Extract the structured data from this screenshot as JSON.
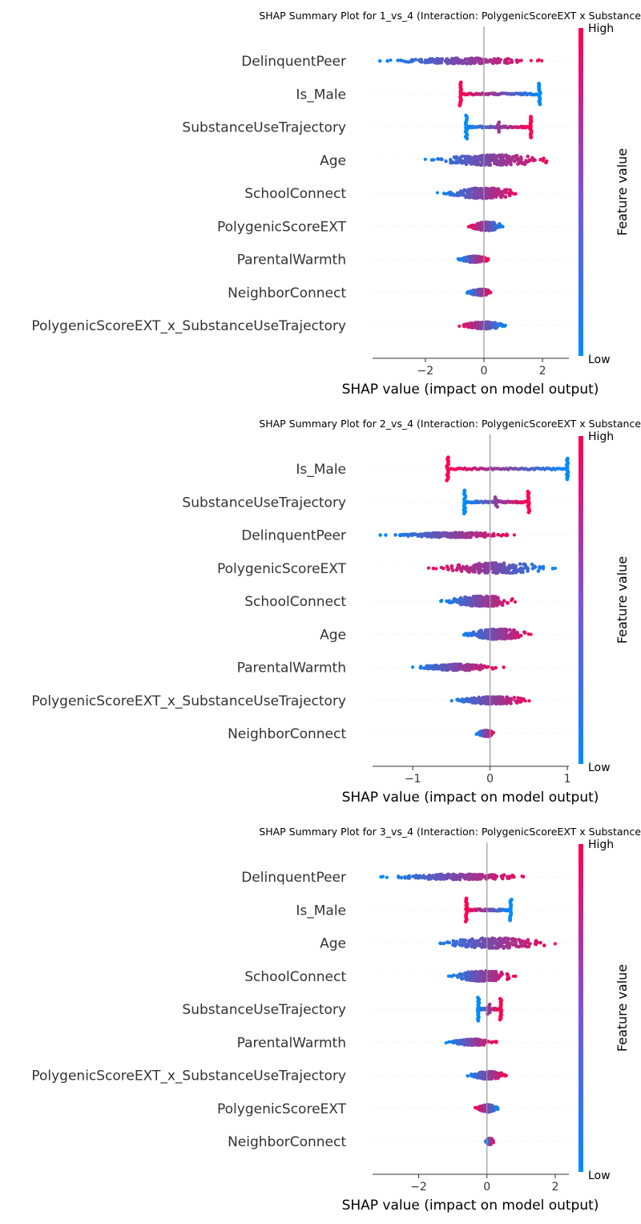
{
  "chart_data": [
    {
      "type": "scatter",
      "title": "SHAP Summary Plot for 1_vs_4 (Interaction: PolygenicScoreEXT x Substance",
      "xlabel": "SHAP value (impact on model output)",
      "xlim": [
        -3.8,
        2.9
      ],
      "xticks": [
        -2,
        0,
        2
      ],
      "xtick_labels": [
        "−2",
        "0",
        "2"
      ],
      "colorbar": {
        "label": "Feature value",
        "high": "High",
        "low": "Low"
      },
      "features": [
        {
          "name": "DelinquentPeer",
          "min": -3.6,
          "max": 2.1,
          "spread": 0.45,
          "dir": 1,
          "outliers": [
            -3.55
          ]
        },
        {
          "name": "Is_Male",
          "min": -0.8,
          "max": 1.9,
          "spread": 0.42,
          "dir": -1,
          "binary": [
            -0.8,
            1.9
          ]
        },
        {
          "name": "SubstanceUseTrajectory",
          "min": -0.6,
          "max": 1.6,
          "spread": 0.35,
          "dir": 1,
          "binary": [
            -0.6,
            1.6
          ],
          "mid": 0.5
        },
        {
          "name": "Age",
          "min": -2.2,
          "max": 2.6,
          "spread": 0.85,
          "dir": 1
        },
        {
          "name": "SchoolConnect",
          "min": -1.6,
          "max": 1.3,
          "spread": 0.85,
          "dir": 1
        },
        {
          "name": "PolygenicScoreEXT",
          "min": -0.6,
          "max": 0.7,
          "spread": 0.7,
          "dir": -1
        },
        {
          "name": "ParentalWarmth",
          "min": -0.9,
          "max": 0.2,
          "spread": 0.5,
          "dir": 1
        },
        {
          "name": "NeighborConnect",
          "min": -0.6,
          "max": 0.3,
          "spread": 0.5,
          "dir": 1
        },
        {
          "name": "PolygenicScoreEXT_x_SubstanceUseTrajectory",
          "min": -0.9,
          "max": 0.8,
          "spread": 0.55,
          "dir": -1
        }
      ]
    },
    {
      "type": "scatter",
      "title": "SHAP Summary Plot for 2_vs_4 (Interaction: PolygenicScoreEXT x Substance",
      "xlabel": "SHAP value (impact on model output)",
      "xlim": [
        -1.52,
        1.02
      ],
      "xticks": [
        -1,
        0,
        1
      ],
      "xtick_labels": [
        "−1",
        "0",
        "1"
      ],
      "colorbar": {
        "label": "Feature value",
        "high": "High",
        "low": "Low"
      },
      "features": [
        {
          "name": "Is_Male",
          "min": -0.55,
          "max": 1.0,
          "spread": 0.42,
          "dir": -1,
          "binary": [
            -0.55,
            1.0
          ]
        },
        {
          "name": "SubstanceUseTrajectory",
          "min": -0.33,
          "max": 0.5,
          "spread": 0.35,
          "dir": 1,
          "binary": [
            -0.33,
            0.5
          ],
          "mid": 0.08
        },
        {
          "name": "DelinquentPeer",
          "min": -1.35,
          "max": 0.35,
          "spread": 0.4,
          "dir": 1,
          "outliers": [
            -1.42,
            -1.35
          ]
        },
        {
          "name": "PolygenicScoreEXT",
          "min": -0.8,
          "max": 0.85,
          "spread": 0.85,
          "dir": -1
        },
        {
          "name": "SchoolConnect",
          "min": -0.65,
          "max": 0.38,
          "spread": 0.85,
          "dir": 1
        },
        {
          "name": "Age",
          "min": -0.4,
          "max": 0.55,
          "spread": 0.85,
          "dir": 1
        },
        {
          "name": "ParentalWarmth",
          "min": -1.05,
          "max": 0.18,
          "spread": 0.5,
          "dir": 1
        },
        {
          "name": "PolygenicScoreEXT_x_SubstanceUseTrajectory",
          "min": -0.55,
          "max": 0.55,
          "spread": 0.6,
          "dir": 1
        },
        {
          "name": "NeighborConnect",
          "min": -0.18,
          "max": 0.06,
          "spread": 0.5,
          "dir": 1
        }
      ]
    },
    {
      "type": "scatter",
      "title": "SHAP Summary Plot for 3_vs_4 (Interaction: PolygenicScoreEXT x Substance",
      "xlabel": "SHAP value (impact on model output)",
      "xlim": [
        -3.35,
        2.4
      ],
      "xticks": [
        -2,
        0,
        2
      ],
      "xtick_labels": [
        "−2",
        "0",
        "2"
      ],
      "colorbar": {
        "label": "Feature value",
        "high": "High",
        "low": "Low"
      },
      "features": [
        {
          "name": "DelinquentPeer",
          "min": -3.1,
          "max": 1.3,
          "spread": 0.45,
          "dir": 1,
          "outliers": [
            -3.1
          ]
        },
        {
          "name": "Is_Male",
          "min": -0.6,
          "max": 0.7,
          "spread": 0.4,
          "dir": -1,
          "binary": [
            -0.6,
            0.7
          ]
        },
        {
          "name": "Age",
          "min": -1.7,
          "max": 2.0,
          "spread": 0.85,
          "dir": 1
        },
        {
          "name": "SchoolConnect",
          "min": -1.2,
          "max": 0.9,
          "spread": 0.85,
          "dir": 1
        },
        {
          "name": "SubstanceUseTrajectory",
          "min": -0.25,
          "max": 0.4,
          "spread": 0.35,
          "dir": 1,
          "binary": [
            -0.25,
            0.4
          ],
          "mid": 0.05
        },
        {
          "name": "ParentalWarmth",
          "min": -1.2,
          "max": 0.3,
          "spread": 0.5,
          "dir": 1
        },
        {
          "name": "PolygenicScoreEXT_x_SubstanceUseTrajectory",
          "min": -0.6,
          "max": 0.6,
          "spread": 0.6,
          "dir": 1
        },
        {
          "name": "PolygenicScoreEXT",
          "min": -0.35,
          "max": 0.35,
          "spread": 0.6,
          "dir": -1
        },
        {
          "name": "NeighborConnect",
          "min": -0.05,
          "max": 0.2,
          "spread": 0.5,
          "dir": 1
        }
      ]
    }
  ],
  "colors": {
    "low": "#008bfb",
    "high": "#ff0051",
    "axis": "#333333",
    "label": "#333333",
    "zero_line": "#999999",
    "grid": "#cccccc"
  }
}
